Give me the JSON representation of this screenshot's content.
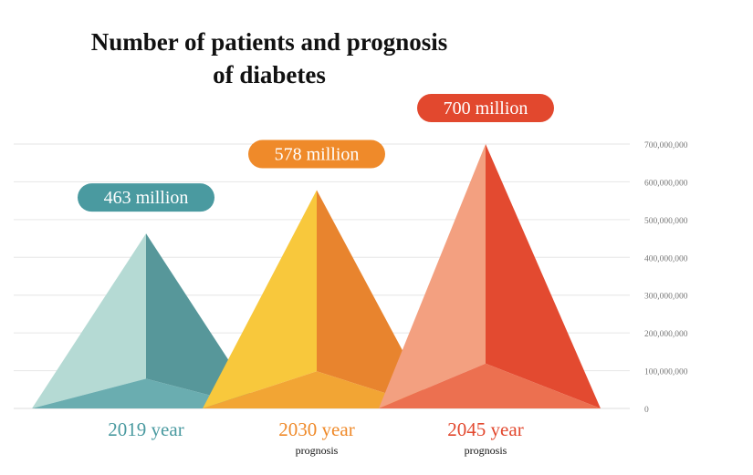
{
  "title_lines": [
    "Number of patients and prognosis",
    "of diabetes"
  ],
  "chart_data": {
    "type": "bar",
    "title": "Number of patients and prognosis of diabetes",
    "xlabel": "",
    "ylabel": "",
    "ylim": [
      0,
      700000000
    ],
    "grid": true,
    "y_ticks": [
      "0",
      "100,000,000",
      "200,000,000",
      "300,000,000",
      "400,000,000",
      "500,000,000",
      "600,000,000",
      "700,000,000"
    ],
    "y_tick_values": [
      0,
      100000000,
      200000000,
      300000000,
      400000000,
      500000000,
      600000000,
      700000000
    ],
    "categories": [
      "2019 year",
      "2030 year",
      "2045 year"
    ],
    "sublabels": [
      "",
      "prognosis",
      "prognosis"
    ],
    "values": [
      463000000,
      578000000,
      700000000
    ],
    "value_labels": [
      "463 million",
      "578 million",
      "700 million"
    ],
    "colors": {
      "2019": {
        "label": "#4a9aa0",
        "left": "#b5dad4",
        "right": "#57979a",
        "bottom": "#6aadb0",
        "pill": "#4a9aa0"
      },
      "2030": {
        "label": "#ef8a2a",
        "left": "#f8c83c",
        "right": "#e8842e",
        "bottom": "#f2a534",
        "pill": "#ef8a2a"
      },
      "2045": {
        "label": "#e2482e",
        "left": "#f3a080",
        "right": "#e34a30",
        "bottom": "#ec7050",
        "pill": "#e2482e"
      }
    },
    "gridline_color": "#e6e6e6",
    "tick_color": "#777777"
  }
}
